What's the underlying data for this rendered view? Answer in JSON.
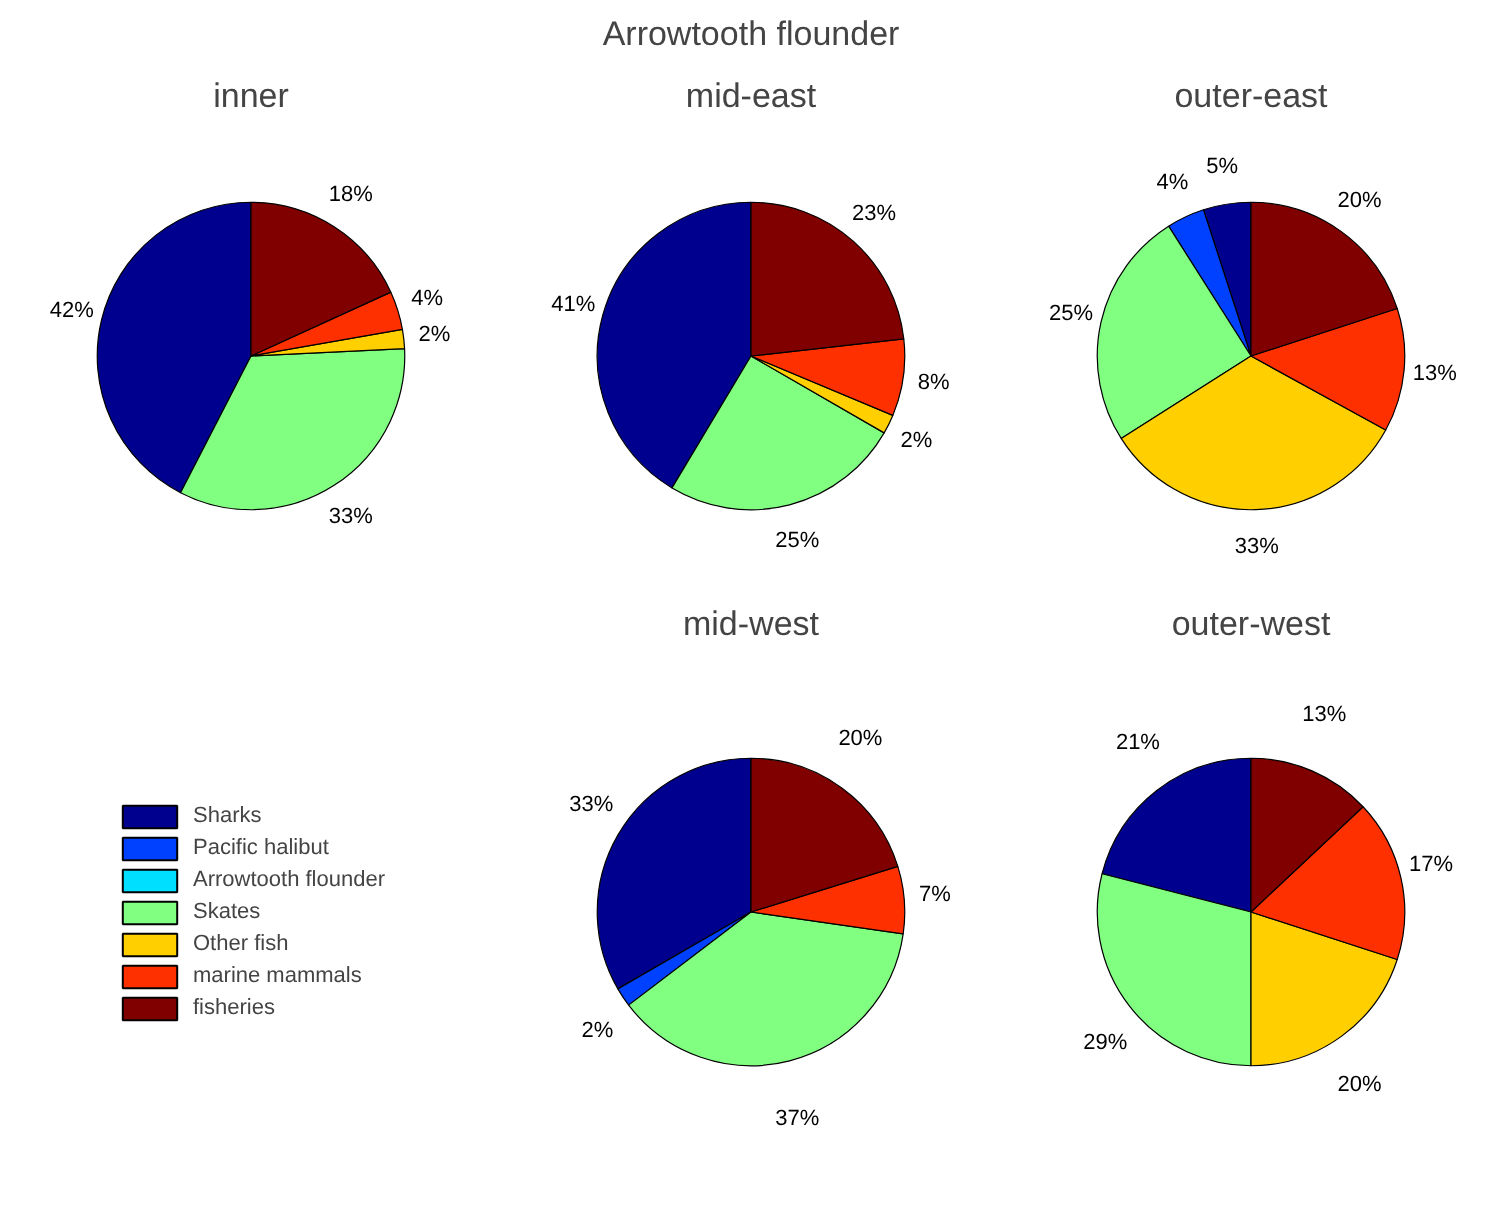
{
  "chart_data": [
    {
      "type": "pie",
      "title": "inner",
      "categories": [
        "Sharks",
        "Pacific halibut",
        "Arrowtooth flounder",
        "Skates",
        "Other fish",
        "marine mammals",
        "fisheries"
      ],
      "colors": [
        "#00008f",
        "#0040ff",
        "#00dfff",
        "#80ff80",
        "#ffcf00",
        "#ff3000",
        "#800000"
      ],
      "values": [
        42,
        0,
        0,
        33,
        2,
        4,
        18
      ],
      "value_labels": [
        "42%",
        null,
        null,
        "33%",
        "2%",
        "4%",
        "18%"
      ],
      "legend": "bottom"
    },
    {
      "type": "pie",
      "title": "Arrowtooth flounder",
      "subtitle": "mid-east",
      "categories": [
        null,
        null,
        null,
        null,
        null,
        null,
        null
      ],
      "colors": [
        "#00008f",
        "#0040ff",
        "#00dfff",
        "#80ff80",
        "#ffcf00",
        "#ff3000",
        "#800000"
      ],
      "values": [
        41,
        0,
        0,
        25,
        2,
        8,
        23
      ],
      "value_labels": [
        "41%",
        null,
        null,
        "25%",
        "2%",
        "8%",
        "23%"
      ]
    },
    {
      "type": "pie",
      "title": "outer-east",
      "categories": [
        null,
        null,
        null,
        null,
        null,
        null,
        null
      ],
      "colors": [
        "#00008f",
        "#0040ff",
        "#00dfff",
        "#80ff80",
        "#ffcf00",
        "#ff3000",
        "#800000"
      ],
      "values": [
        5,
        4,
        0,
        25,
        33,
        13,
        20
      ],
      "value_labels": [
        "5%",
        "4%",
        null,
        "25%",
        "33%",
        "13%",
        "20%"
      ]
    },
    {
      "type": "pie",
      "title": "mid-west",
      "categories": [
        null,
        null,
        null,
        null,
        null,
        null,
        null
      ],
      "colors": [
        "#00008f",
        "#0040ff",
        "#00dfff",
        "#80ff80",
        "#ffcf00",
        "#ff3000",
        "#800000"
      ],
      "values": [
        33,
        2,
        0,
        37,
        0,
        7,
        20
      ],
      "value_labels": [
        "33%",
        "2%",
        null,
        "37%",
        null,
        "7%",
        "20%"
      ]
    },
    {
      "type": "pie",
      "title": "outer-west",
      "categories": [
        null,
        null,
        null,
        null,
        null,
        null,
        null
      ],
      "colors": [
        "#00008f",
        "#0040ff",
        "#00dfff",
        "#80ff80",
        "#ffcf00",
        "#ff3000",
        "#800000"
      ],
      "values": [
        21,
        0,
        0,
        29,
        20,
        17,
        13
      ],
      "value_labels": [
        "21%",
        null,
        null,
        "29%",
        "20%",
        "17%",
        "13%"
      ]
    }
  ]
}
